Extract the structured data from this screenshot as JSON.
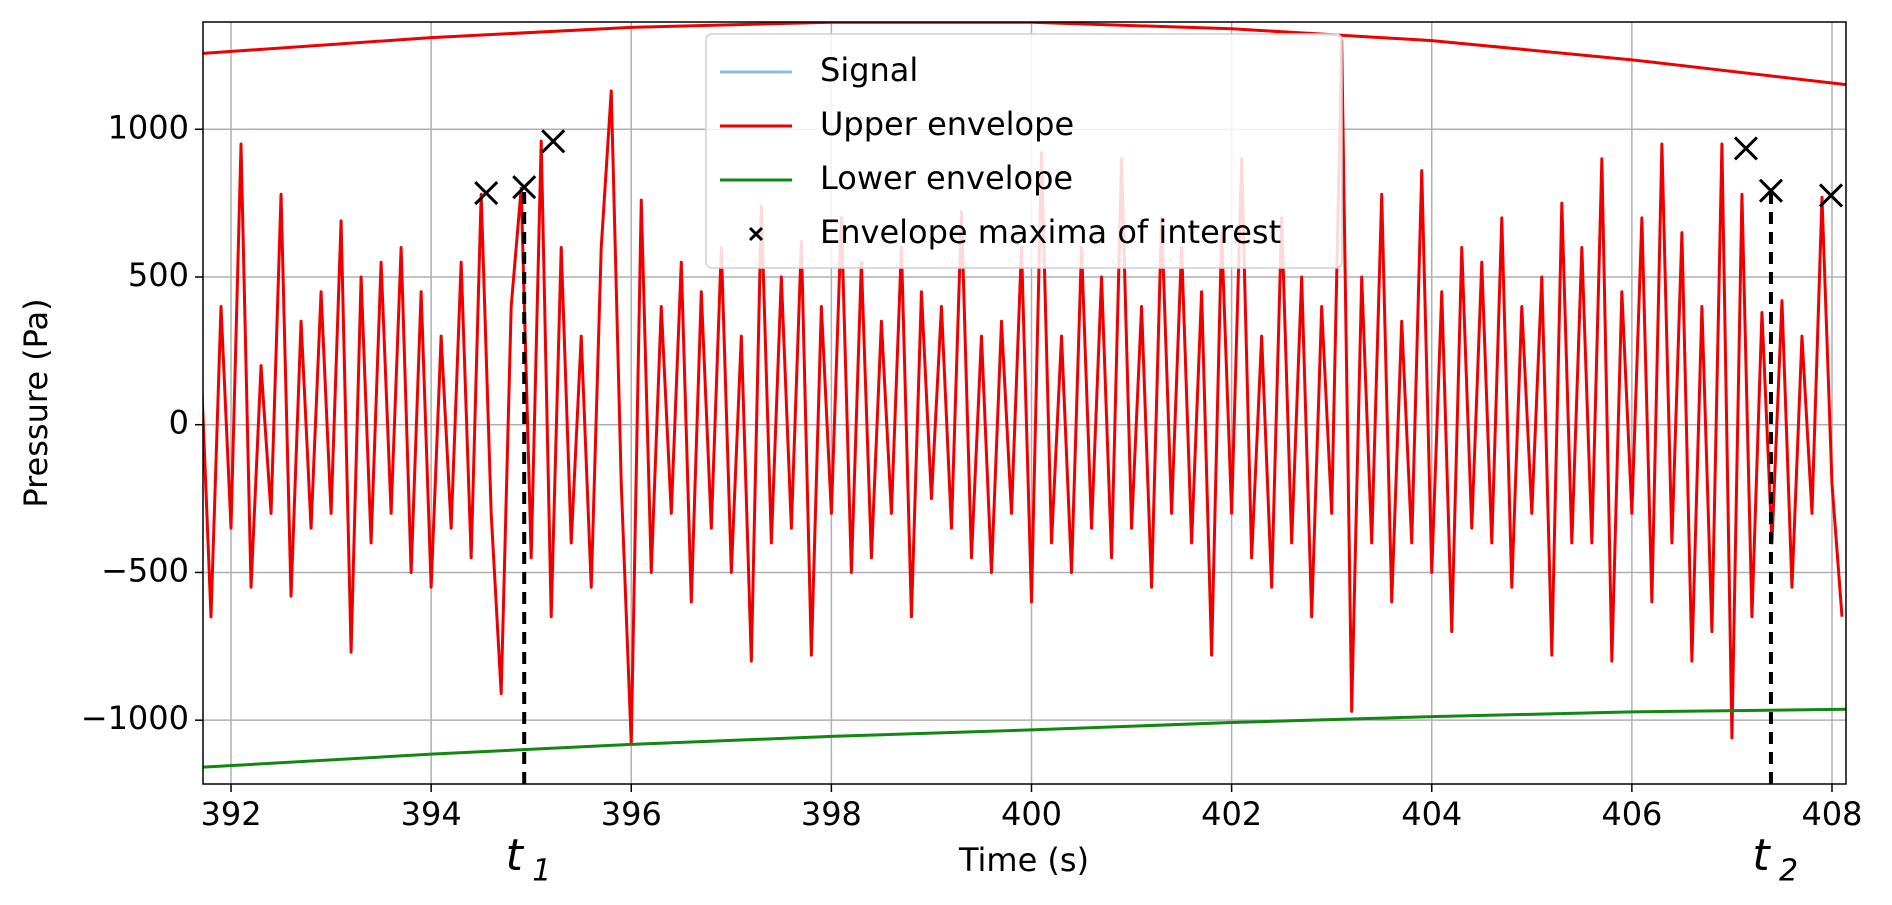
{
  "chart_data": {
    "type": "line",
    "xlabel": "Time (s)",
    "ylabel": "Pressure (Pa)",
    "xlim": [
      391.72,
      408.14
    ],
    "ylim": [
      -1216,
      1363
    ],
    "xticks": [
      392,
      394,
      396,
      398,
      400,
      402,
      404,
      406,
      408
    ],
    "yticks": [
      {
        "value": -1000,
        "label": "−1000"
      },
      {
        "value": -500,
        "label": "−500"
      },
      0,
      500,
      1000
    ],
    "grid": true,
    "legend": "upper center",
    "series": [
      {
        "name": "Signal",
        "color": "#8fbfe0",
        "line_color": "#ee0000",
        "x": [
          391.7,
          391.8,
          391.9,
          392.0,
          392.1,
          392.2,
          392.3,
          392.4,
          392.5,
          392.6,
          392.7,
          392.8,
          392.9,
          393.0,
          393.1,
          393.2,
          393.3,
          393.4,
          393.5,
          393.6,
          393.7,
          393.8,
          393.9,
          394.0,
          394.1,
          394.2,
          394.3,
          394.4,
          394.5,
          394.6,
          394.7,
          394.8,
          394.9,
          395.0,
          395.1,
          395.2,
          395.3,
          395.4,
          395.5,
          395.6,
          395.7,
          395.8,
          395.9,
          396.0,
          396.1,
          396.2,
          396.3,
          396.4,
          396.5,
          396.6,
          396.7,
          396.8,
          396.9,
          397.0,
          397.1,
          397.2,
          397.3,
          397.4,
          397.5,
          397.6,
          397.7,
          397.8,
          397.9,
          398.0,
          398.1,
          398.2,
          398.3,
          398.4,
          398.5,
          398.6,
          398.7,
          398.8,
          398.9,
          399.0,
          399.1,
          399.2,
          399.3,
          399.4,
          399.5,
          399.6,
          399.7,
          399.8,
          399.9,
          400.0,
          400.1,
          400.2,
          400.3,
          400.4,
          400.5,
          400.6,
          400.7,
          400.8,
          400.9,
          401.0,
          401.1,
          401.2,
          401.3,
          401.4,
          401.5,
          401.6,
          401.7,
          401.8,
          401.9,
          402.0,
          402.1,
          402.2,
          402.3,
          402.4,
          402.5,
          402.6,
          402.7,
          402.8,
          402.9,
          403.0,
          403.1,
          403.2,
          403.3,
          403.4,
          403.5,
          403.6,
          403.7,
          403.8,
          403.9,
          404.0,
          404.1,
          404.2,
          404.3,
          404.4,
          404.5,
          404.6,
          404.7,
          404.8,
          404.9,
          405.0,
          405.1,
          405.2,
          405.3,
          405.4,
          405.5,
          405.6,
          405.7,
          405.8,
          405.9,
          406.0,
          406.1,
          406.2,
          406.3,
          406.4,
          406.5,
          406.6,
          406.7,
          406.8,
          406.9,
          407.0,
          407.1,
          407.2,
          407.3,
          407.4,
          407.5,
          407.6,
          407.7,
          407.8,
          407.9,
          408.0,
          408.1
        ],
        "values": [
          200,
          -650,
          400,
          -350,
          950,
          -550,
          200,
          -300,
          780,
          -580,
          350,
          -350,
          450,
          -300,
          690,
          -770,
          500,
          -400,
          550,
          -300,
          600,
          -500,
          450,
          -550,
          300,
          -350,
          550,
          -450,
          780,
          -300,
          -910,
          400,
          800,
          -450,
          960,
          -650,
          600,
          -400,
          300,
          -550,
          600,
          1130,
          -200,
          -1080,
          760,
          -500,
          400,
          -300,
          550,
          -600,
          450,
          -350,
          600,
          -500,
          300,
          -800,
          740,
          -400,
          500,
          -350,
          620,
          -780,
          400,
          -300,
          700,
          -500,
          550,
          -450,
          350,
          -300,
          600,
          -650,
          450,
          -250,
          400,
          -350,
          720,
          -450,
          300,
          -500,
          350,
          -300,
          600,
          -600,
          920,
          -400,
          300,
          -500,
          600,
          -350,
          500,
          -450,
          900,
          -350,
          400,
          -550,
          700,
          -300,
          600,
          -400,
          450,
          -780,
          650,
          -300,
          900,
          -450,
          300,
          -550,
          700,
          -400,
          500,
          -650,
          400,
          -300,
          1300,
          -970,
          500,
          -400,
          780,
          -600,
          350,
          -400,
          860,
          -500,
          450,
          -700,
          600,
          -350,
          550,
          -400,
          700,
          -550,
          400,
          -300,
          500,
          -780,
          750,
          -400,
          600,
          -400,
          900,
          -800,
          450,
          -300,
          700,
          -600,
          950,
          -400,
          650,
          -800,
          400,
          -700,
          950,
          -1060,
          780,
          -650,
          380,
          -400,
          420,
          -550,
          300,
          -300,
          770,
          -200,
          -650
        ]
      },
      {
        "name": "Upper envelope",
        "color": "#ee0000",
        "x": [
          391.72,
          394,
          396,
          398,
          400,
          402,
          404,
          406,
          408.14
        ],
        "values": [
          1257,
          1310,
          1345,
          1362,
          1362,
          1340,
          1300,
          1235,
          1151
        ]
      },
      {
        "name": "Lower envelope",
        "color": "#118811",
        "x": [
          391.72,
          394,
          396,
          398,
          400,
          402,
          404,
          406,
          408.14
        ],
        "values": [
          -1159,
          -1115,
          -1082,
          -1055,
          -1033,
          -1008,
          -988,
          -972,
          -963
        ]
      },
      {
        "name": "Envelope maxima of interest",
        "color": "#000000",
        "kind": "scatter",
        "x": [
          394.55,
          394.93,
          395.22,
          407.14,
          407.39,
          407.99
        ],
        "values": [
          784,
          804,
          959,
          935,
          792,
          776
        ]
      }
    ],
    "annotations": [
      {
        "x": 394.93,
        "label": "t",
        "subscript": "1"
      },
      {
        "x": 407.39,
        "label": "t",
        "subscript": "2"
      }
    ]
  }
}
